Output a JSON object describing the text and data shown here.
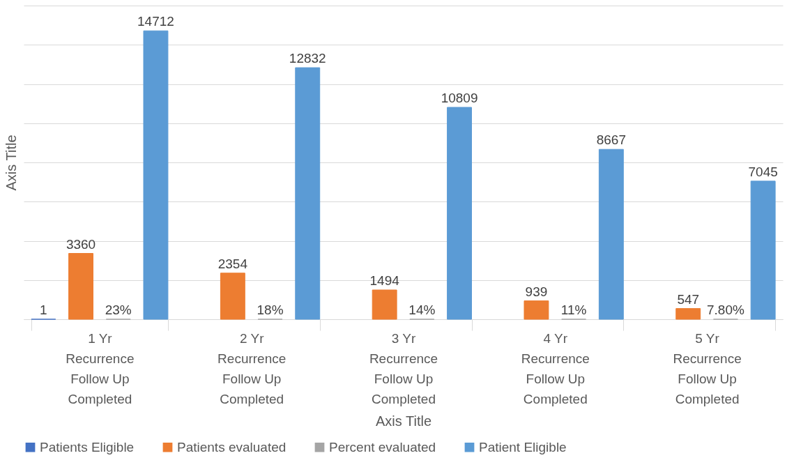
{
  "chart_data": {
    "type": "bar",
    "xlabel": "Axis Title",
    "ylabel": "Axis Title",
    "categories": [
      "1 Yr\nRecurrence\nFollow Up\nCompleted",
      "2 Yr\nRecurrence\nFollow Up\nCompleted",
      "3 Yr\nRecurrence\nFollow Up\nCompleted",
      "4 Yr\nRecurrence\nFollow Up\nCompleted",
      "5 Yr\nRecurrence\nFollow Up\nCompleted"
    ],
    "series": [
      {
        "name": "Patients Eligible",
        "color": "#4472c4",
        "values": [
          1,
          null,
          null,
          null,
          null
        ]
      },
      {
        "name": "Patients evaluated",
        "color": "#ed7d31",
        "values": [
          3360,
          2354,
          1494,
          939,
          547
        ]
      },
      {
        "name": "Percent evaluated",
        "color": "#a5a5a5",
        "values": [
          0.23,
          0.18,
          0.14,
          0.11,
          0.078
        ],
        "value_labels": [
          "23%",
          "18%",
          "14%",
          "11%",
          "7.80%"
        ]
      },
      {
        "name": "Patient Eligible",
        "color": "#5b9bd5",
        "values": [
          14712,
          12832,
          10809,
          8667,
          7045
        ]
      }
    ],
    "ylim": [
      0,
      16000
    ],
    "yticks": [
      {
        "value": 0,
        "label": null
      },
      {
        "value": 2000,
        "label": null
      },
      {
        "value": 4000,
        "label": null
      },
      {
        "value": 6000,
        "label": null
      },
      {
        "value": 8000,
        "label": null
      },
      {
        "value": 10000,
        "label": null
      },
      {
        "value": 12000,
        "label": null
      },
      {
        "value": 14000,
        "label": null
      },
      {
        "value": 16000,
        "label": null
      }
    ],
    "grid": "y",
    "tick_labels": "x",
    "data_labels": true,
    "legend": "bottom"
  }
}
